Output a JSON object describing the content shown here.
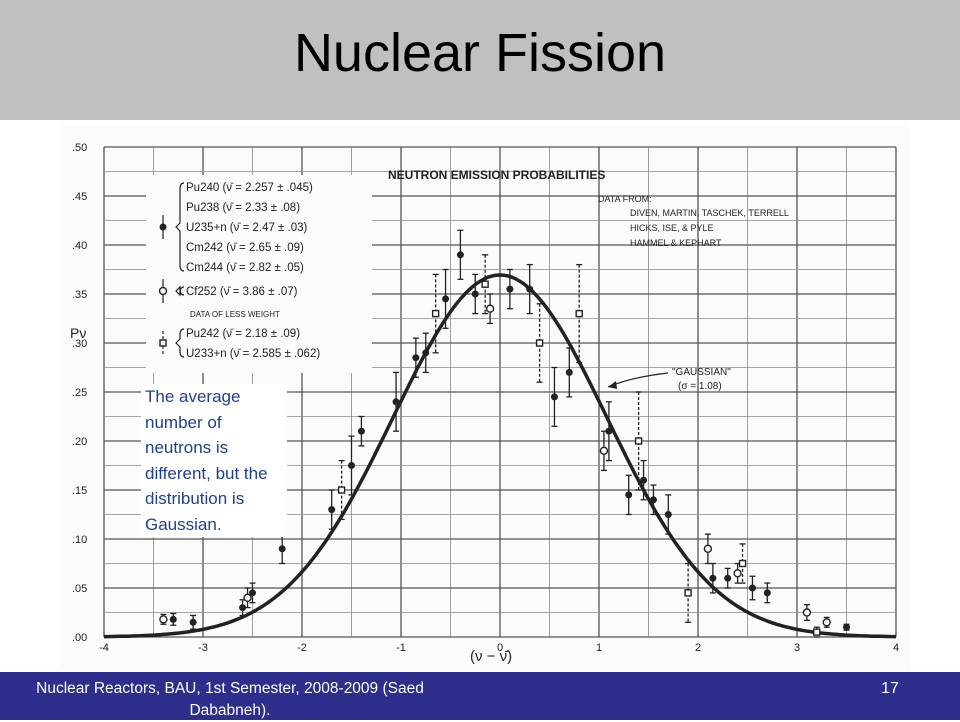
{
  "slide": {
    "title": "Nuclear Fission",
    "callout": "The average number of neutrons is different, but the distribution is Gaussian.",
    "footer": "Nuclear Reactors, BAU, 1st Semester, 2008-2009 (Saed Dababneh).",
    "page_number": "17"
  },
  "colors": {
    "title_bar": "#c0c0c0",
    "footer_bar": "#2e2e8c",
    "callout_text": "#1f3f8f",
    "figure_ink": "#222222"
  },
  "chart_data": {
    "type": "scatter",
    "title": "NEUTRON EMISSION PROBABILITIES",
    "xlabel": "(ν − ν̄)",
    "ylabel": "Pν",
    "xlim": [
      -4,
      4
    ],
    "ylim": [
      0,
      0.5
    ],
    "grid": true,
    "x_ticks": [
      "-4",
      "-3",
      "-2",
      "-1",
      "0",
      "1",
      "2",
      "3",
      "4"
    ],
    "y_ticks": [
      ".00",
      ".05",
      ".10",
      ".15",
      ".20",
      ".25",
      ".30",
      ".35",
      ".40",
      ".45",
      ".50"
    ],
    "data_source_lines": [
      "DATA FROM:",
      "DIVEN, MARTIN, TASCHEK, TERRELL",
      "HICKS, ISE, & PYLE",
      "HAMMEL & KEPHART"
    ],
    "curve_label": "\"GAUSSIAN\"",
    "curve_sigma": "(σ = 1.08)",
    "curve": {
      "name": "\"GAUSSIAN\" (σ = 1.08)",
      "sigma": 1.08
    },
    "legend": [
      {
        "marker": "filled-circle",
        "lines": [
          "Pu240 (ν̄ = 2.257 ± .045)",
          "Pu238 (ν̄ = 2.33 ± .08)",
          "U235+n (ν̄ = 2.47 ± .03)",
          "Cm242 (ν̄ = 2.65 ± .09)",
          "Cm244 (ν̄ = 2.82 ± .05)"
        ]
      },
      {
        "marker": "open-circle",
        "lines": [
          "Cf252 (ν̄ = 3.86 ± .07)"
        ]
      },
      {
        "marker": "open-square",
        "header": "DATA OF LESS WEIGHT",
        "lines": [
          "Pu242 (ν̄ = 2.18 ± .09)",
          "U233+n (ν̄ = 2.585 ± .062)"
        ]
      }
    ],
    "series": [
      {
        "marker": "filled-circle",
        "points": [
          {
            "x": -3.3,
            "y": 0.018,
            "err": 0.006
          },
          {
            "x": -3.1,
            "y": 0.015,
            "err": 0.007
          },
          {
            "x": -2.6,
            "y": 0.03,
            "err": 0.008
          },
          {
            "x": -2.5,
            "y": 0.045,
            "err": 0.01
          },
          {
            "x": -2.2,
            "y": 0.09,
            "err": 0.015
          },
          {
            "x": -1.7,
            "y": 0.13,
            "err": 0.02
          },
          {
            "x": -1.5,
            "y": 0.175,
            "err": 0.03
          },
          {
            "x": -1.4,
            "y": 0.21,
            "err": 0.015
          },
          {
            "x": -1.05,
            "y": 0.24,
            "err": 0.03
          },
          {
            "x": -0.85,
            "y": 0.285,
            "err": 0.02
          },
          {
            "x": -0.75,
            "y": 0.29,
            "err": 0.02
          },
          {
            "x": -0.55,
            "y": 0.345,
            "err": 0.03
          },
          {
            "x": -0.4,
            "y": 0.39,
            "err": 0.025
          },
          {
            "x": -0.25,
            "y": 0.35,
            "err": 0.02
          },
          {
            "x": 0.1,
            "y": 0.355,
            "err": 0.02
          },
          {
            "x": 0.3,
            "y": 0.355,
            "err": 0.025
          },
          {
            "x": 0.55,
            "y": 0.245,
            "err": 0.03
          },
          {
            "x": 0.7,
            "y": 0.27,
            "err": 0.025
          },
          {
            "x": 1.1,
            "y": 0.21,
            "err": 0.03
          },
          {
            "x": 1.3,
            "y": 0.145,
            "err": 0.02
          },
          {
            "x": 1.45,
            "y": 0.16,
            "err": 0.02
          },
          {
            "x": 1.55,
            "y": 0.14,
            "err": 0.015
          },
          {
            "x": 1.7,
            "y": 0.125,
            "err": 0.02
          },
          {
            "x": 2.15,
            "y": 0.06,
            "err": 0.015
          },
          {
            "x": 2.3,
            "y": 0.06,
            "err": 0.01
          },
          {
            "x": 2.55,
            "y": 0.05,
            "err": 0.012
          },
          {
            "x": 2.7,
            "y": 0.045,
            "err": 0.01
          },
          {
            "x": 3.5,
            "y": 0.01,
            "err": 0.003
          }
        ]
      },
      {
        "marker": "open-circle",
        "points": [
          {
            "x": -3.4,
            "y": 0.018,
            "err": 0.005
          },
          {
            "x": -2.55,
            "y": 0.04,
            "err": 0.01
          },
          {
            "x": -2.2,
            "y": 0.115,
            "err": 0.01
          },
          {
            "x": -0.1,
            "y": 0.335,
            "err": 0.015
          },
          {
            "x": 1.05,
            "y": 0.19,
            "err": 0.02
          },
          {
            "x": 2.1,
            "y": 0.09,
            "err": 0.015
          },
          {
            "x": 2.4,
            "y": 0.065,
            "err": 0.01
          },
          {
            "x": 3.1,
            "y": 0.025,
            "err": 0.008
          },
          {
            "x": 3.3,
            "y": 0.015,
            "err": 0.005
          }
        ]
      },
      {
        "marker": "open-square",
        "points": [
          {
            "x": -1.6,
            "y": 0.15,
            "err": 0.03
          },
          {
            "x": -0.65,
            "y": 0.33,
            "err": 0.04
          },
          {
            "x": -0.15,
            "y": 0.36,
            "err": 0.03
          },
          {
            "x": 0.4,
            "y": 0.3,
            "err": 0.04
          },
          {
            "x": 0.8,
            "y": 0.33,
            "err": 0.05
          },
          {
            "x": 1.4,
            "y": 0.2,
            "err": 0.05
          },
          {
            "x": 1.9,
            "y": 0.045,
            "err": 0.03
          },
          {
            "x": 2.45,
            "y": 0.075,
            "err": 0.02
          },
          {
            "x": 3.2,
            "y": 0.005,
            "err": 0.005
          }
        ]
      }
    ]
  }
}
